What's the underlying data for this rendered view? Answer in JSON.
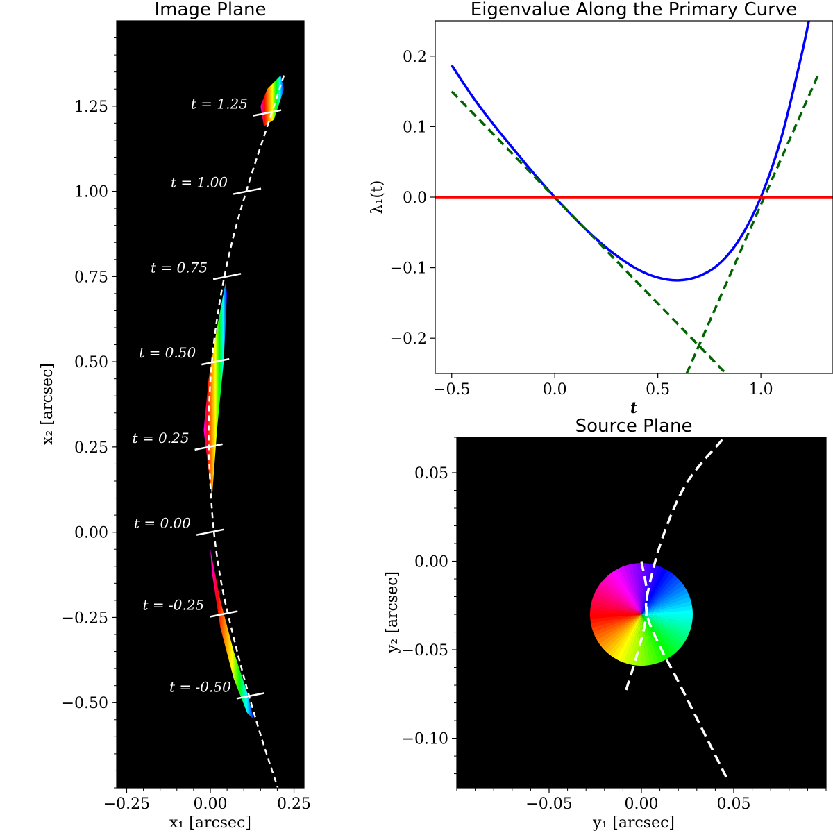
{
  "chart_data": [
    {
      "type": "scatter",
      "title": "Image Plane",
      "xlabel": "x₁ [arcsec]",
      "ylabel": "x₂ [arcsec]",
      "xlim": [
        -0.28,
        0.28
      ],
      "ylim": [
        -0.75,
        1.5
      ],
      "xticks": [
        -0.25,
        0.0,
        0.25
      ],
      "xtick_labels": [
        "−0.25",
        "0.00",
        "0.25"
      ],
      "yticks": [
        -0.5,
        -0.25,
        0.0,
        0.25,
        0.5,
        0.75,
        1.0,
        1.25
      ],
      "ytick_labels": [
        "−0.50",
        "−0.25",
        "0.00",
        "0.25",
        "0.50",
        "0.75",
        "1.00",
        "1.25"
      ],
      "background": "#000000",
      "curve_color": "#ffffff",
      "curve": {
        "x": [
          0.22,
          0.17,
          0.12,
          0.075,
          0.04,
          0.015,
          0.0,
          -0.005,
          0.0,
          0.012,
          0.035,
          0.07,
          0.11,
          0.155,
          0.205,
          0.225
        ],
        "y": [
          1.34,
          1.19,
          1.04,
          0.89,
          0.74,
          0.59,
          0.44,
          0.29,
          0.14,
          -0.01,
          -0.16,
          -0.31,
          -0.46,
          -0.61,
          -0.76,
          -0.82
        ]
      },
      "markers": [
        {
          "label": "t = -0.50",
          "x": 0.12,
          "y": -0.48
        },
        {
          "label": "t = -0.25",
          "x": 0.04,
          "y": -0.24
        },
        {
          "label": "t = 0.00",
          "x": 0.0,
          "y": 0.0
        },
        {
          "label": "t = 0.25",
          "x": -0.005,
          "y": 0.25
        },
        {
          "label": "t = 0.50",
          "x": 0.015,
          "y": 0.5
        },
        {
          "label": "t = 0.75",
          "x": 0.05,
          "y": 0.75
        },
        {
          "label": "t = 1.00",
          "x": 0.11,
          "y": 1.0
        },
        {
          "label": "t = 1.25",
          "x": 0.17,
          "y": 1.23
        }
      ],
      "images": [
        {
          "x": [
            0.21,
            0.17,
            0.15,
            0.16,
            0.19,
            0.22
          ],
          "y": [
            1.34,
            1.3,
            1.25,
            1.19,
            1.21,
            1.3
          ]
        },
        {
          "x": [
            0.045,
            0.02,
            -0.005,
            -0.02,
            -0.005,
            0.005,
            0.02,
            0.04,
            0.05
          ],
          "y": [
            0.73,
            0.6,
            0.45,
            0.3,
            0.18,
            0.1,
            0.3,
            0.5,
            0.7
          ]
        },
        {
          "x": [
            0.0,
            0.03,
            0.07,
            0.11,
            0.13,
            0.11,
            0.07,
            0.03,
            0.005
          ],
          "y": [
            -0.05,
            -0.2,
            -0.35,
            -0.47,
            -0.55,
            -0.53,
            -0.43,
            -0.28,
            -0.12
          ]
        }
      ]
    },
    {
      "type": "line",
      "title": "Eigenvalue Along the Primary Curve",
      "xlabel": "t",
      "ylabel": "λ₁(t)",
      "xlim": [
        -0.58,
        1.35
      ],
      "ylim": [
        -0.25,
        0.25
      ],
      "xticks": [
        -0.5,
        0.0,
        0.5,
        1.0
      ],
      "xtick_labels": [
        "−0.5",
        "0.0",
        "0.5",
        "1.0"
      ],
      "yticks": [
        -0.2,
        -0.1,
        0.0,
        0.1,
        0.2
      ],
      "ytick_labels": [
        "−0.2",
        "−0.1",
        "0.0",
        "0.1",
        "0.2"
      ],
      "series": [
        {
          "color": "#0000ff",
          "style": "solid",
          "x": [
            -0.5,
            -0.4,
            -0.3,
            -0.2,
            -0.1,
            0.0,
            0.1,
            0.2,
            0.3,
            0.4,
            0.5,
            0.6,
            0.7,
            0.8,
            0.9,
            1.0,
            1.1,
            1.2,
            1.25
          ],
          "y": [
            0.187,
            0.143,
            0.104,
            0.068,
            0.033,
            0.0,
            -0.031,
            -0.059,
            -0.083,
            -0.102,
            -0.114,
            -0.118,
            -0.112,
            -0.094,
            -0.058,
            0.0,
            0.085,
            0.205,
            0.275
          ]
        },
        {
          "color": "#006400",
          "style": "dashed",
          "x": [
            -0.5,
            0.83
          ],
          "y": [
            0.15,
            -0.25
          ]
        },
        {
          "color": "#006400",
          "style": "dashed",
          "x": [
            0.64,
            1.28
          ],
          "y": [
            -0.25,
            0.175
          ]
        },
        {
          "color": "#ff0000",
          "style": "solid",
          "x": [
            -0.58,
            1.35
          ],
          "y": [
            0.0,
            0.0
          ]
        }
      ]
    },
    {
      "type": "scatter",
      "title": "Source Plane",
      "xlabel": "y₁ [arcsec]",
      "ylabel": "y₂ [arcsec]",
      "xlim": [
        -0.1,
        0.1
      ],
      "ylim": [
        -0.128,
        0.07
      ],
      "xticks": [
        -0.05,
        0.0,
        0.05
      ],
      "xtick_labels": [
        "−0.05",
        "0.00",
        "0.05"
      ],
      "yticks": [
        -0.1,
        -0.05,
        0.0,
        0.05
      ],
      "ytick_labels": [
        "−0.10",
        "−0.05",
        "0.00",
        "0.05"
      ],
      "background": "#000000",
      "source": {
        "cx": 0.0,
        "cy": -0.03,
        "r": 0.029
      },
      "caustics": [
        {
          "x": [
            0.0,
            0.003,
            0.002,
            -0.003,
            -0.009
          ],
          "y": [
            0.0,
            -0.018,
            -0.035,
            -0.055,
            -0.075
          ]
        },
        {
          "x": [
            0.046,
            0.033,
            0.02,
            0.01,
            0.003,
            0.004,
            0.012,
            0.025,
            0.045
          ],
          "y": [
            -0.122,
            -0.095,
            -0.068,
            -0.048,
            -0.03,
            -0.015,
            0.015,
            0.045,
            0.07
          ]
        }
      ]
    }
  ]
}
